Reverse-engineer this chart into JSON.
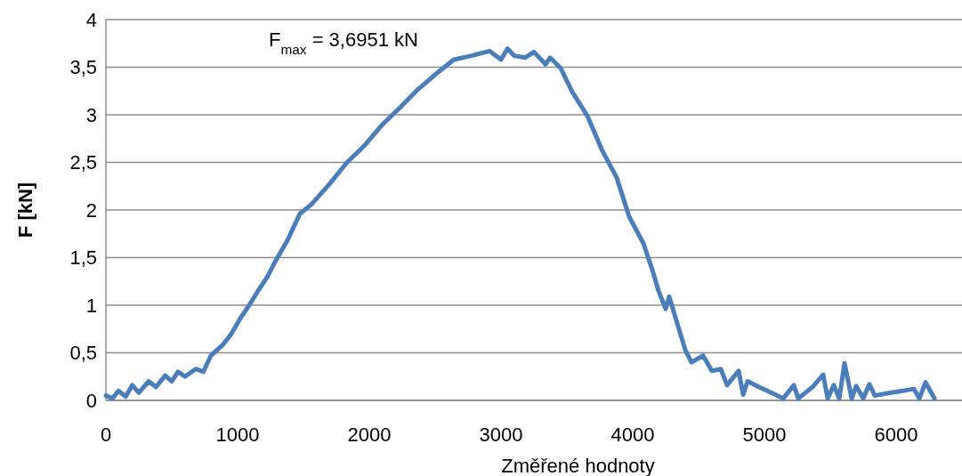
{
  "chart_data": {
    "type": "line",
    "xlabel": "Změřené hodnoty",
    "ylabel": "F [kN]",
    "annotations": [
      "F$_{max}$ = 3,6951 kN"
    ],
    "xlim": [
      0,
      6500
    ],
    "xticks": [
      0,
      1000,
      2000,
      3000,
      4000,
      5000,
      6000
    ],
    "ylim": [
      0,
      4
    ],
    "yticks": [
      0,
      {
        "value": 0.5,
        "label": "0,5"
      },
      1,
      {
        "value": 1.5,
        "label": "1,5"
      },
      2,
      {
        "value": 2.5,
        "label": "2,5"
      },
      3,
      {
        "value": 3.5,
        "label": "3,5"
      },
      4
    ],
    "grid": "y",
    "marker": "none",
    "line_style": "solid",
    "series": [
      {
        "color": "#4a7ebb",
        "x": [
          0,
          50,
          95,
          150,
          200,
          250,
          324,
          380,
          450,
          500,
          547,
          600,
          682,
          740,
          797,
          885,
          953,
          1020,
          1088,
          1155,
          1223,
          1290,
          1378,
          1473,
          1561,
          1696,
          1831,
          1966,
          2101,
          2236,
          2372,
          2507,
          2642,
          2777,
          2912,
          3000,
          3050,
          3100,
          3182,
          3250,
          3338,
          3372,
          3453,
          3541,
          3655,
          3770,
          3878,
          3973,
          4081,
          4149,
          4196,
          4250,
          4277,
          4331,
          4399,
          4446,
          4534,
          4601,
          4669,
          4716,
          4804,
          4838,
          4872,
          4959,
          5054,
          5142,
          5223,
          5257,
          5365,
          5446,
          5480,
          5527,
          5568,
          5608,
          5662,
          5696,
          5750,
          5797,
          5838,
          5953,
          6050,
          6135,
          6176,
          6223,
          6291
        ],
        "values": [
          0.05,
          0.02,
          0.1,
          0.04,
          0.16,
          0.08,
          0.2,
          0.14,
          0.26,
          0.2,
          0.3,
          0.25,
          0.33,
          0.3,
          0.47,
          0.58,
          0.7,
          0.86,
          1.0,
          1.15,
          1.29,
          1.47,
          1.68,
          1.96,
          2.06,
          2.27,
          2.5,
          2.68,
          2.9,
          3.08,
          3.27,
          3.43,
          3.58,
          3.62,
          3.67,
          3.58,
          3.6951,
          3.62,
          3.6,
          3.66,
          3.53,
          3.6,
          3.49,
          3.24,
          2.99,
          2.62,
          2.34,
          1.93,
          1.65,
          1.37,
          1.15,
          0.96,
          1.09,
          0.84,
          0.53,
          0.4,
          0.47,
          0.31,
          0.33,
          0.16,
          0.31,
          0.06,
          0.2,
          0.14,
          0.08,
          0.02,
          0.16,
          0.02,
          0.14,
          0.27,
          0.02,
          0.16,
          0.02,
          0.39,
          0.02,
          0.15,
          0.02,
          0.17,
          0.05,
          0.08,
          0.1,
          0.12,
          0.02,
          0.19,
          0.02
        ]
      }
    ]
  }
}
